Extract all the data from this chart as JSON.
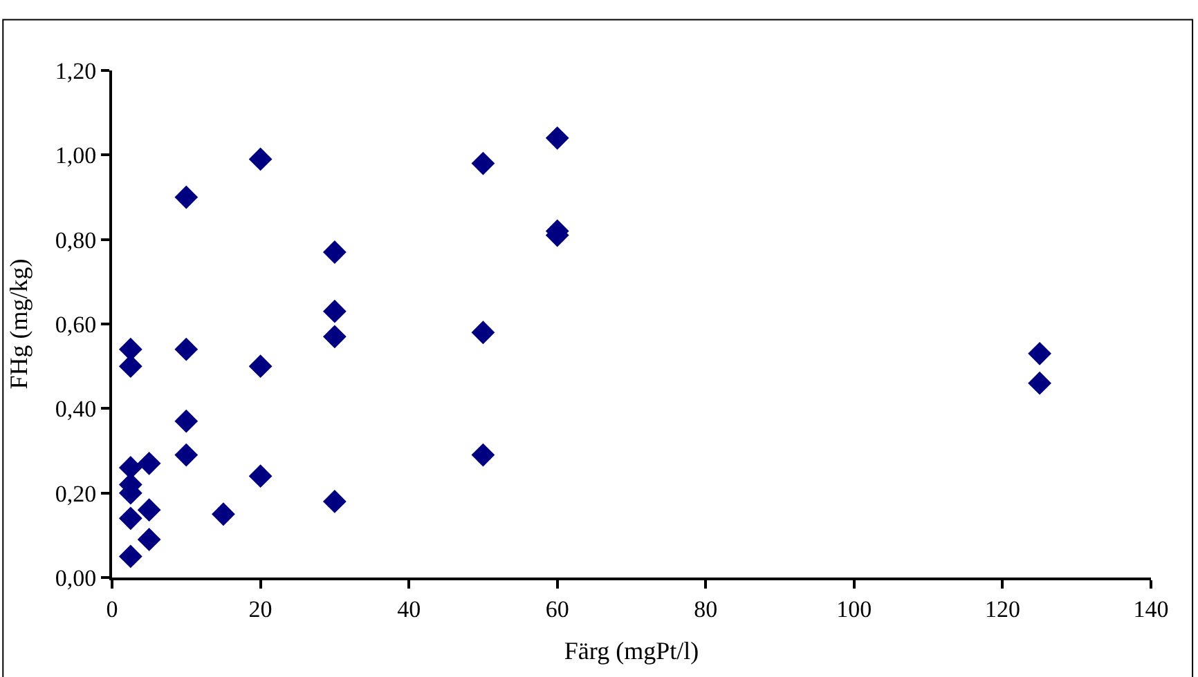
{
  "chart_data": {
    "type": "scatter",
    "xlabel": "Färg (mgPt/l)",
    "ylabel": "FHg (mg/kg)",
    "x": [
      2.5,
      2.5,
      2.5,
      2.5,
      2.5,
      2.5,
      2.5,
      5,
      5,
      5,
      10,
      10,
      10,
      10,
      15,
      20,
      20,
      20,
      30,
      30,
      30,
      30,
      50,
      50,
      50,
      60,
      60,
      60,
      125,
      125
    ],
    "values": [
      0.54,
      0.5,
      0.26,
      0.22,
      0.2,
      0.14,
      0.05,
      0.27,
      0.16,
      0.09,
      0.9,
      0.54,
      0.37,
      0.29,
      0.15,
      0.99,
      0.5,
      0.24,
      0.77,
      0.63,
      0.57,
      0.18,
      0.98,
      0.58,
      0.29,
      1.04,
      0.82,
      0.81,
      0.53,
      0.46
    ],
    "color": "#000080",
    "marker": "diamond",
    "legend": false,
    "xlim": [
      0,
      140
    ],
    "xticks": [
      0,
      20,
      40,
      60,
      80,
      100,
      120,
      140
    ],
    "ylim": [
      0,
      1.2
    ],
    "yticks": [
      {
        "value": 0,
        "label": "0,00"
      },
      {
        "value": 0.2,
        "label": "0,20"
      },
      {
        "value": 0.4,
        "label": "0,40"
      },
      {
        "value": 0.6,
        "label": "0,60"
      },
      {
        "value": 0.8,
        "label": "0,80"
      },
      {
        "value": 1.0,
        "label": "1,00"
      },
      {
        "value": 1.2,
        "label": "1,20"
      }
    ]
  }
}
